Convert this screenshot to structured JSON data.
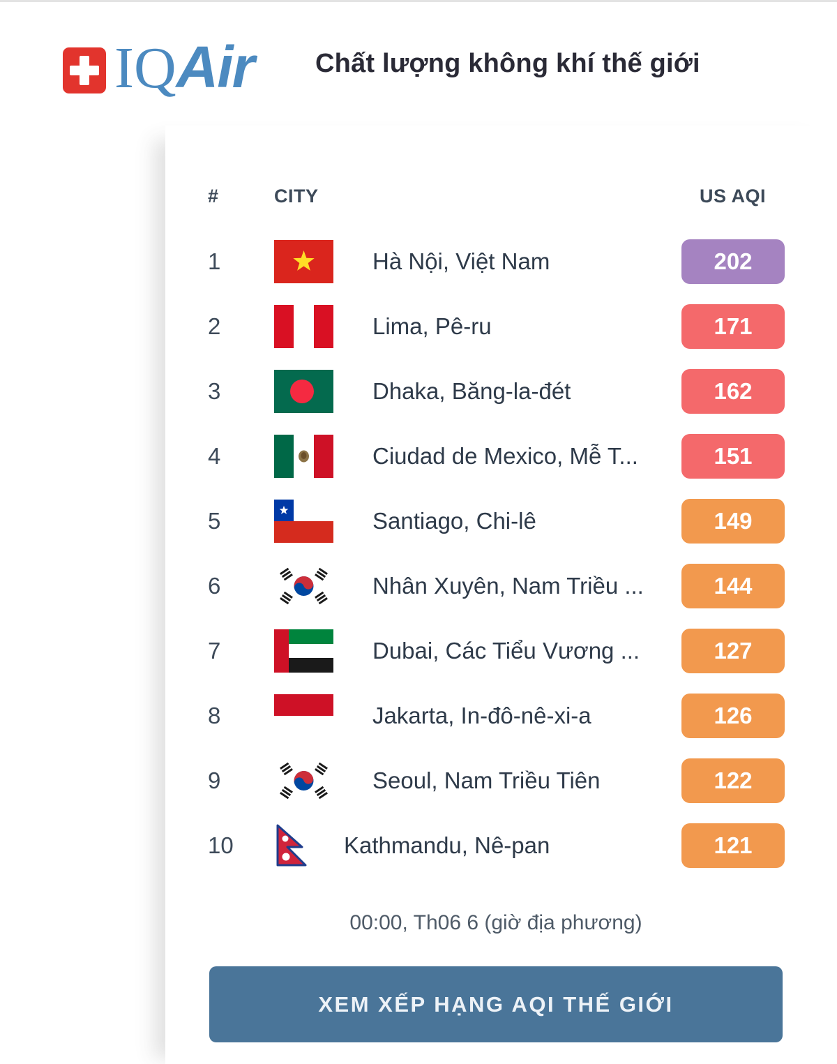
{
  "header": {
    "logo": {
      "brand_iq": "IQ",
      "brand_air": "Air"
    },
    "title": "Chất lượng không khí thế giới"
  },
  "colors": {
    "logo_red": "#e2342d",
    "brand_blue": "#4c8ac0",
    "button_blue": "#4a7599",
    "aqi_levels": {
      "very-unhealthy": "#a583c1",
      "unhealthy": "#f4696b",
      "unhealthy-sensitive": "#f2994e"
    }
  },
  "table": {
    "columns": {
      "rank": "#",
      "city": "CITY",
      "aqi": "US AQI"
    },
    "rows": [
      {
        "rank": "1",
        "flag": "vietnam",
        "city": "Hà Nội, Việt Nam",
        "aqi": "202",
        "level": "very-unhealthy"
      },
      {
        "rank": "2",
        "flag": "peru",
        "city": "Lima, Pê-ru",
        "aqi": "171",
        "level": "unhealthy"
      },
      {
        "rank": "3",
        "flag": "bangladesh",
        "city": "Dhaka, Băng-la-đét",
        "aqi": "162",
        "level": "unhealthy"
      },
      {
        "rank": "4",
        "flag": "mexico",
        "city": "Ciudad de Mexico, Mễ T...",
        "aqi": "151",
        "level": "unhealthy"
      },
      {
        "rank": "5",
        "flag": "chile",
        "city": "Santiago, Chi-lê",
        "aqi": "149",
        "level": "unhealthy-sensitive"
      },
      {
        "rank": "6",
        "flag": "south-korea",
        "city": "Nhân Xuyên, Nam Triều ...",
        "aqi": "144",
        "level": "unhealthy-sensitive"
      },
      {
        "rank": "7",
        "flag": "uae",
        "city": "Dubai, Các Tiểu Vương ...",
        "aqi": "127",
        "level": "unhealthy-sensitive"
      },
      {
        "rank": "8",
        "flag": "indonesia",
        "city": "Jakarta, In-đô-nê-xi-a",
        "aqi": "126",
        "level": "unhealthy-sensitive"
      },
      {
        "rank": "9",
        "flag": "south-korea",
        "city": "Seoul, Nam Triều Tiên",
        "aqi": "122",
        "level": "unhealthy-sensitive"
      },
      {
        "rank": "10",
        "flag": "nepal",
        "city": "Kathmandu, Nê-pan",
        "aqi": "121",
        "level": "unhealthy-sensitive"
      }
    ]
  },
  "footer": {
    "timestamp": "00:00, Th06 6 (giờ địa phương)",
    "button_label": "XEM XẾP HẠNG AQI THẾ GIỚI"
  }
}
